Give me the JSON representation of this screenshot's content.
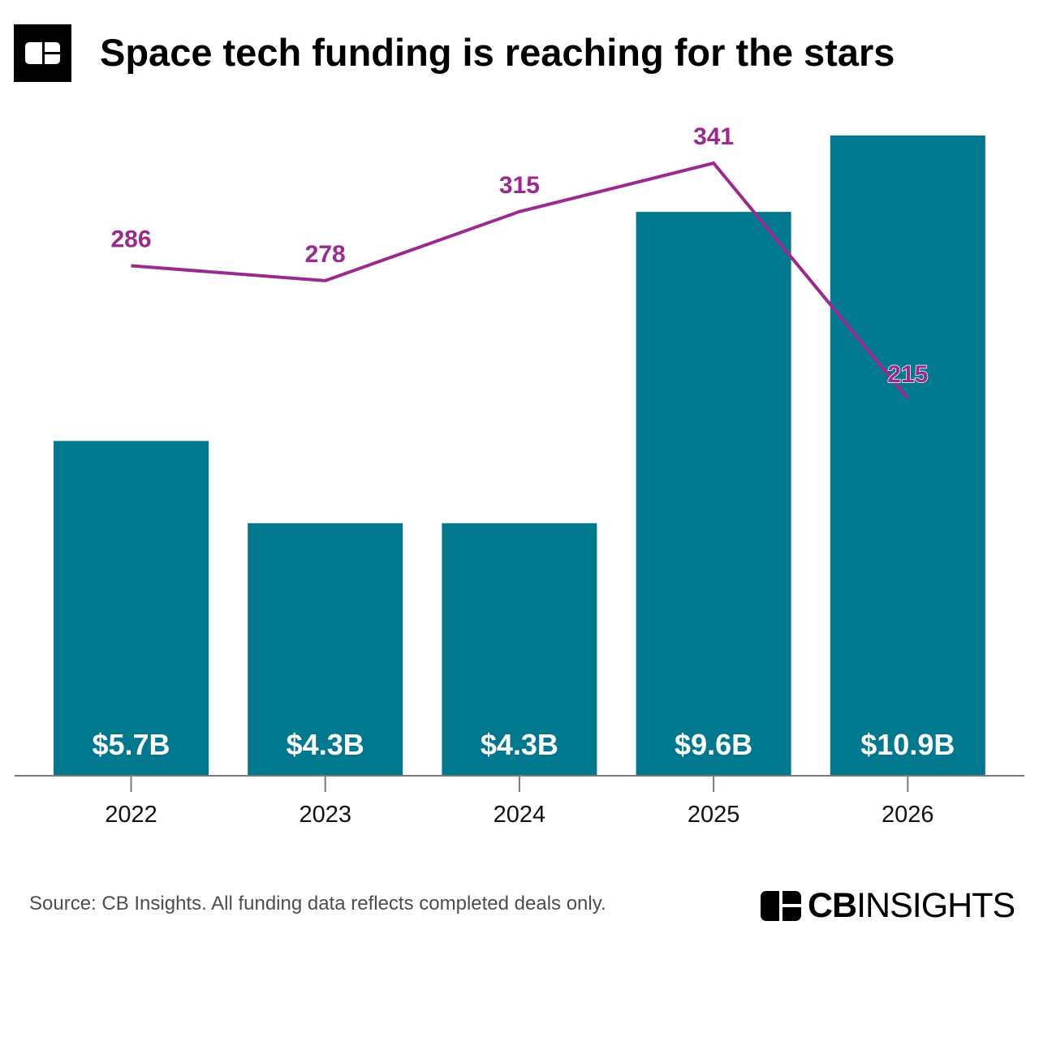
{
  "header": {
    "title": "Space tech funding is reaching for the stars",
    "logo_icon": "cb-insights-mark-icon"
  },
  "chart_data": {
    "type": "bar",
    "title": "Space tech funding is reaching for the stars",
    "categories": [
      "2022",
      "2023",
      "2024",
      "2025",
      "2026"
    ],
    "series": [
      {
        "type": "bar",
        "values": [
          5.7,
          4.3,
          4.3,
          9.6,
          10.9
        ],
        "labels": [
          "$5.7B",
          "$4.3B",
          "$4.3B",
          "$9.6B",
          "$10.9B"
        ],
        "color": "#00788D"
      },
      {
        "type": "line",
        "values": [
          286,
          278,
          315,
          341,
          215
        ],
        "labels": [
          "286",
          "278",
          "315",
          "341",
          "215"
        ],
        "color": "#9B2A8F"
      }
    ],
    "xlabel": "",
    "ylabel": "",
    "grid": false,
    "legend": "none"
  },
  "footer": {
    "source": "Source: CB Insights. All funding data reflects completed deals only.",
    "brand_bold": "CB",
    "brand_light": "INSIGHTS",
    "brand_icon": "cb-insights-mark-icon"
  }
}
